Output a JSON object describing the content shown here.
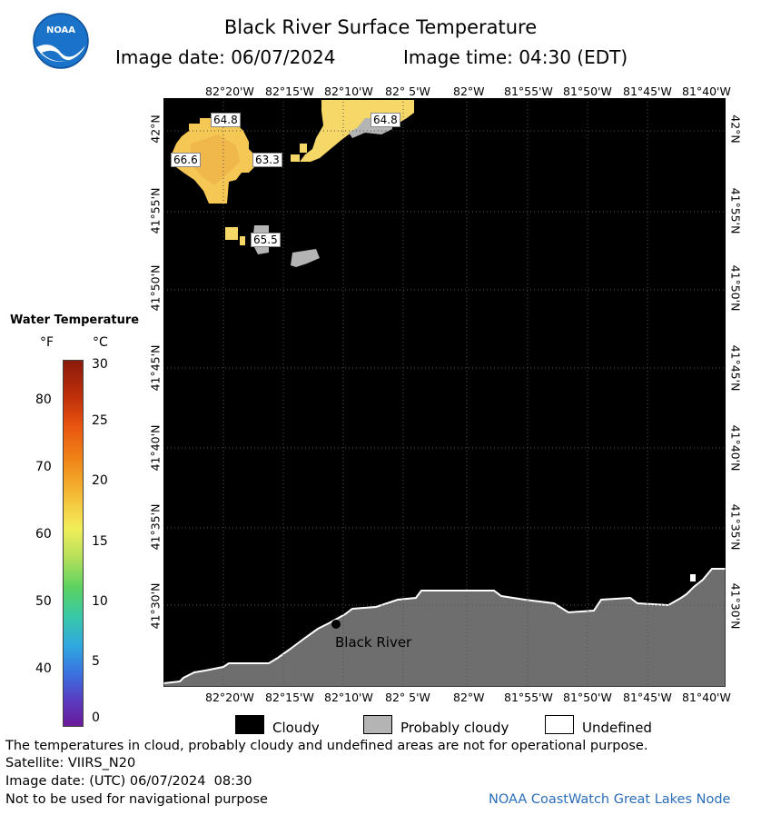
{
  "header": {
    "title": "Black River Surface Temperature",
    "image_date": "Image date: 06/07/2024",
    "image_time": "Image time: 04:30 (EDT)",
    "logo_text": "NOAA"
  },
  "map": {
    "lon_labels": [
      "82°20'W",
      "82°15'W",
      "82°10'W",
      "82° 5'W",
      "82°W",
      "81°55'W",
      "81°50'W",
      "81°45'W",
      "81°40'W"
    ],
    "lat_labels": [
      "42°N",
      "41°55'N",
      "41°50'N",
      "41°45'N",
      "41°40'N",
      "41°35'N",
      "41°30'N"
    ],
    "temp_labels": [
      "64.8",
      "64.8",
      "66.6",
      "63.3",
      "65.5"
    ],
    "place_label": "Black River",
    "colors": {
      "cloudy": "#000000",
      "land": "#6e6e6e",
      "probably_cloudy": "#b4b4b4",
      "warm_water": "#f5d25a"
    }
  },
  "colorbar": {
    "title": "Water Temperature",
    "unit_f": "°F",
    "unit_c": "°C",
    "f_ticks": [
      "80",
      "70",
      "60",
      "50",
      "40"
    ],
    "c_ticks": [
      "30",
      "25",
      "20",
      "15",
      "10",
      "5",
      "0"
    ]
  },
  "legend": {
    "cloudy": "Cloudy",
    "probably_cloudy": "Probably cloudy",
    "undefined": "Undefined"
  },
  "footer": {
    "disclaimer": "The temperatures in cloud, probably cloudy and undefined areas are not for operational purpose.",
    "satellite": "Satellite: VIIRS_N20",
    "utc_date": "Image date: (UTC) 06/07/2024  08:30",
    "nav_warning": "Not to be used for navigational purpose",
    "credit": "NOAA CoastWatch Great Lakes Node"
  }
}
